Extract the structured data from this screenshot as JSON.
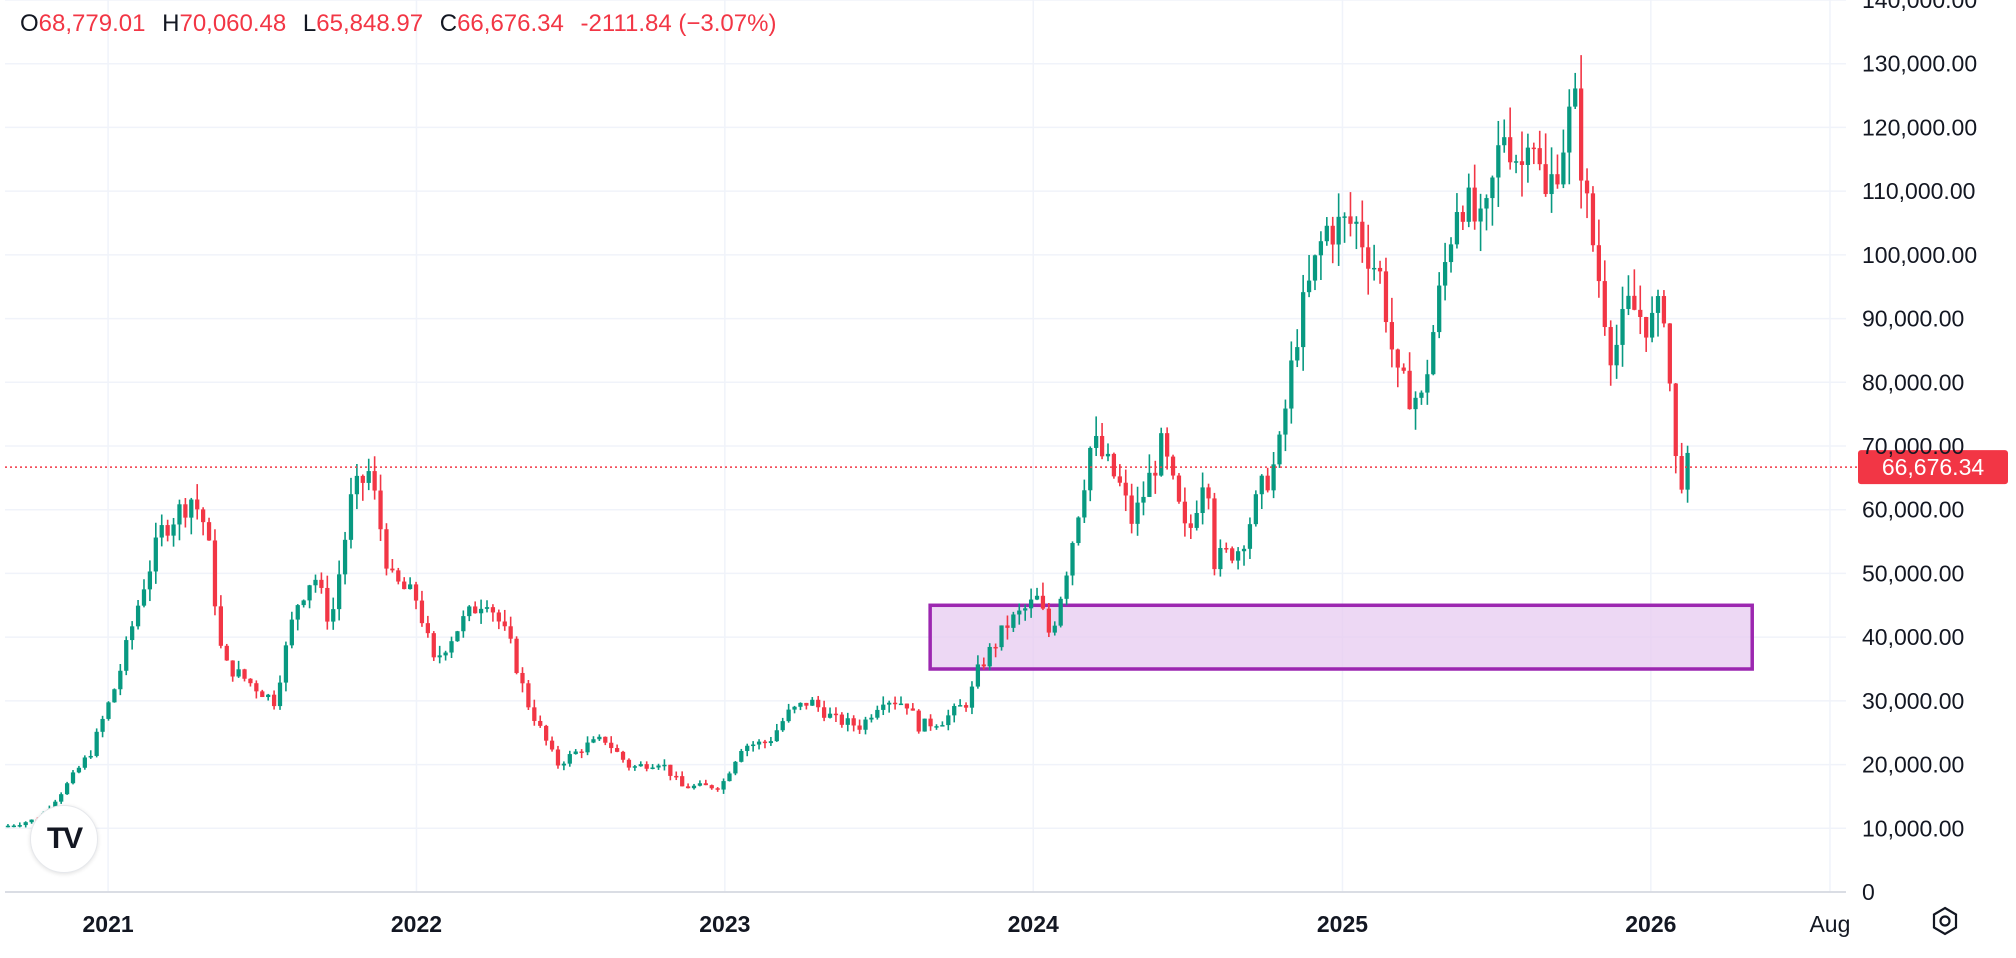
{
  "ohlc": {
    "open_label": "O",
    "open": "68,779.01",
    "high_label": "H",
    "high": "70,060.48",
    "low_label": "L",
    "low": "65,848.97",
    "close_label": "C",
    "close": "66,676.34",
    "change": "-2111.84 (−3.07%)"
  },
  "logo_text": "TV",
  "colors": {
    "up": "#089981",
    "down": "#f23645",
    "zone_stroke": "#9c27b0",
    "zone_fill": "#e7cbf0",
    "grid": "#f0f3fa"
  },
  "icons": {
    "settings": "settings-icon",
    "logo": "tradingview-logo-icon"
  },
  "chart_data": {
    "type": "candlestick",
    "interval": "weekly",
    "y_axis_position": "right",
    "ylim": [
      0,
      140000
    ],
    "y_ticks": [
      0,
      10000,
      20000,
      30000,
      40000,
      50000,
      60000,
      70000,
      80000,
      90000,
      100000,
      110000,
      120000,
      130000,
      140000
    ],
    "y_tick_labels": [
      "0",
      "10,000.00",
      "20,000.00",
      "30,000.00",
      "40,000.00",
      "50,000.00",
      "60,000.00",
      "70,000.00",
      "80,000.00",
      "90,000.00",
      "100,000.00",
      "110,000.00",
      "120,000.00",
      "130,000.00",
      "140,000.00"
    ],
    "x_range": [
      "2020-09-01",
      "2026-08-20"
    ],
    "x_ticks": [
      {
        "date": "2021-01-01",
        "label": "2021",
        "bold": true
      },
      {
        "date": "2022-01-01",
        "label": "2022",
        "bold": true
      },
      {
        "date": "2023-01-01",
        "label": "2023",
        "bold": true
      },
      {
        "date": "2024-01-01",
        "label": "2024",
        "bold": true
      },
      {
        "date": "2025-01-01",
        "label": "2025",
        "bold": true
      },
      {
        "date": "2026-01-01",
        "label": "2026",
        "bold": true
      },
      {
        "date": "2026-08-01",
        "label": "Aug",
        "bold": false
      }
    ],
    "last_price": {
      "value": 66676.34,
      "label": "66,676.34"
    },
    "zone": {
      "x_start": "2023-09-01",
      "x_end": "2026-05-01",
      "y_low": 35000,
      "y_high": 45000
    },
    "price_path": [
      [
        "2020-09-01",
        10200
      ],
      [
        "2020-10-15",
        11500
      ],
      [
        "2020-11-15",
        16500
      ],
      [
        "2020-12-15",
        22000
      ],
      [
        "2021-01-15",
        33000
      ],
      [
        "2021-02-15",
        48000
      ],
      [
        "2021-03-10",
        57000
      ],
      [
        "2021-04-14",
        62000
      ],
      [
        "2021-05-01",
        57000
      ],
      [
        "2021-05-20",
        36000
      ],
      [
        "2021-06-20",
        33000
      ],
      [
        "2021-07-20",
        30000
      ],
      [
        "2021-08-15",
        45000
      ],
      [
        "2021-09-05",
        50000
      ],
      [
        "2021-09-25",
        42000
      ],
      [
        "2021-10-20",
        62000
      ],
      [
        "2021-11-10",
        66000
      ],
      [
        "2021-12-05",
        49000
      ],
      [
        "2022-01-05",
        46000
      ],
      [
        "2022-01-25",
        36000
      ],
      [
        "2022-02-25",
        42000
      ],
      [
        "2022-03-28",
        46500
      ],
      [
        "2022-04-25",
        39000
      ],
      [
        "2022-05-15",
        30000
      ],
      [
        "2022-06-20",
        20000
      ],
      [
        "2022-07-25",
        23000
      ],
      [
        "2022-08-15",
        24000
      ],
      [
        "2022-09-15",
        19500
      ],
      [
        "2022-10-20",
        20500
      ],
      [
        "2022-11-15",
        16500
      ],
      [
        "2022-12-31",
        16600
      ],
      [
        "2023-01-25",
        23000
      ],
      [
        "2023-02-25",
        23500
      ],
      [
        "2023-03-20",
        28000
      ],
      [
        "2023-04-15",
        30000
      ],
      [
        "2023-05-15",
        27000
      ],
      [
        "2023-06-15",
        26000
      ],
      [
        "2023-07-10",
        30500
      ],
      [
        "2023-08-10",
        29500
      ],
      [
        "2023-08-20",
        26000
      ],
      [
        "2023-09-20",
        27000
      ],
      [
        "2023-10-20",
        30000
      ],
      [
        "2023-11-01",
        35000
      ],
      [
        "2023-12-05",
        42000
      ],
      [
        "2024-01-10",
        46000
      ],
      [
        "2024-01-25",
        40000
      ],
      [
        "2024-02-15",
        52000
      ],
      [
        "2024-03-14",
        71000
      ],
      [
        "2024-04-15",
        64000
      ],
      [
        "2024-05-01",
        58000
      ],
      [
        "2024-06-05",
        70000
      ],
      [
        "2024-07-05",
        55000
      ],
      [
        "2024-07-28",
        68000
      ],
      [
        "2024-08-05",
        52000
      ],
      [
        "2024-09-05",
        54000
      ],
      [
        "2024-09-30",
        63000
      ],
      [
        "2024-10-20",
        68000
      ],
      [
        "2024-11-12",
        88000
      ],
      [
        "2024-12-15",
        104000
      ],
      [
        "2025-01-20",
        105000
      ],
      [
        "2025-02-20",
        96000
      ],
      [
        "2025-03-10",
        80000
      ],
      [
        "2025-04-08",
        77000
      ],
      [
        "2025-05-01",
        95000
      ],
      [
        "2025-05-22",
        110000
      ],
      [
        "2025-06-20",
        103000
      ],
      [
        "2025-07-14",
        120000
      ],
      [
        "2025-08-05",
        114000
      ],
      [
        "2025-08-14",
        123000
      ],
      [
        "2025-09-01",
        108000
      ],
      [
        "2025-10-06",
        124000
      ],
      [
        "2025-10-20",
        108000
      ],
      [
        "2025-11-20",
        84000
      ],
      [
        "2025-12-10",
        92000
      ],
      [
        "2026-01-05",
        89000
      ],
      [
        "2026-01-20",
        92000
      ],
      [
        "2026-02-05",
        64000
      ],
      [
        "2026-02-16",
        66676
      ]
    ]
  }
}
